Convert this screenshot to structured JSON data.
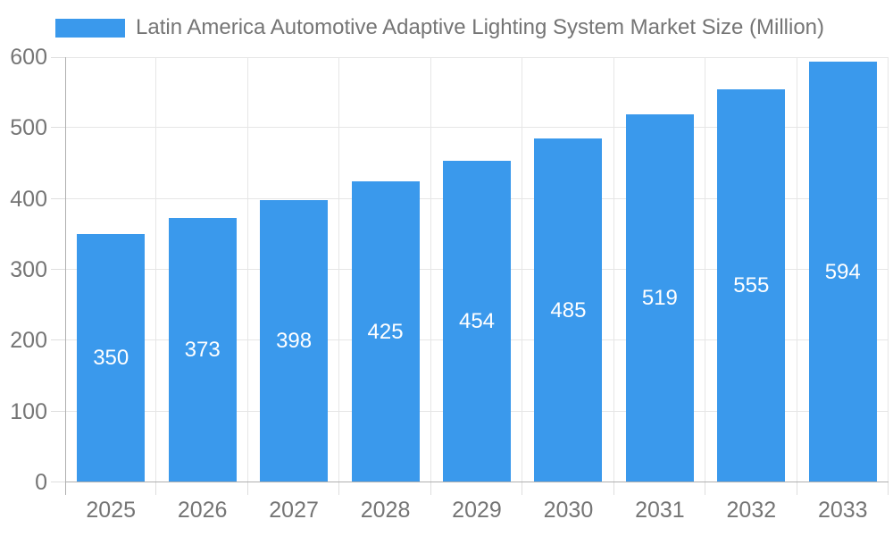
{
  "chart_data": {
    "type": "bar",
    "title": "Latin America Automotive Adaptive Lighting System Market Size (Million)",
    "categories": [
      "2025",
      "2026",
      "2027",
      "2028",
      "2029",
      "2030",
      "2031",
      "2032",
      "2033"
    ],
    "values": [
      350,
      373,
      398,
      425,
      454,
      485,
      519,
      555,
      594
    ],
    "ylim": [
      0,
      600
    ],
    "y_ticks": [
      0,
      100,
      200,
      300,
      400,
      500,
      600
    ],
    "grid": true,
    "legend_position": "top-left",
    "value_label_position": "inside-center",
    "colors": {
      "bar": "#3A99EC",
      "value_label": "#FFFFFF",
      "axis_text": "#757575",
      "grid_line": "#E6E6E6",
      "tick_line": "#DEDEDE",
      "axis_line": "#B0B0B0",
      "background": "#FFFFFF"
    }
  }
}
